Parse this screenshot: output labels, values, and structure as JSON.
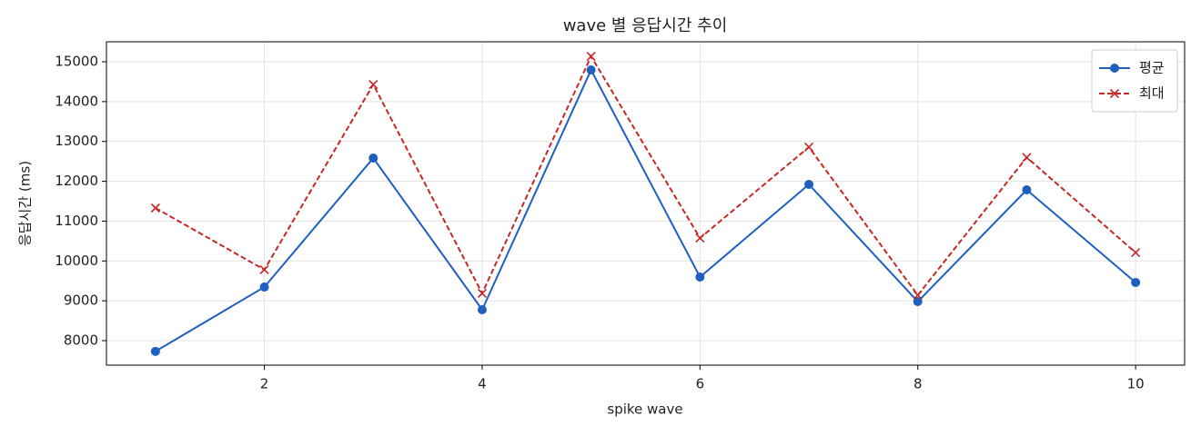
{
  "chart_data": {
    "type": "line",
    "title": "wave 별 응답시간 추이",
    "x_label": "spike wave",
    "y_label": "응답시간 (ms)",
    "x": [
      1,
      2,
      3,
      4,
      5,
      6,
      7,
      8,
      9,
      10
    ],
    "series": [
      {
        "name": "평균",
        "color": "#1f5fbf",
        "marker": "o",
        "linestyle": "solid",
        "values": [
          7730,
          9345,
          12583,
          8775,
          14795,
          9596,
          11922,
          8980,
          11785,
          9460
        ]
      },
      {
        "name": "최대",
        "color": "#c62828",
        "marker": "x",
        "linestyle": "dashed",
        "values": [
          11329,
          9780,
          14430,
          9186,
          15137,
          10575,
          12858,
          9140,
          12600,
          10210
        ]
      }
    ],
    "xlim": [
      0.55,
      10.45
    ],
    "xticks": [
      2,
      4,
      6,
      8,
      10
    ],
    "ylim": [
      7384,
      15502
    ],
    "yticks": [
      8000,
      9000,
      10000,
      11000,
      12000,
      13000,
      14000,
      15000
    ],
    "grid": true,
    "legend": "upper-right"
  }
}
